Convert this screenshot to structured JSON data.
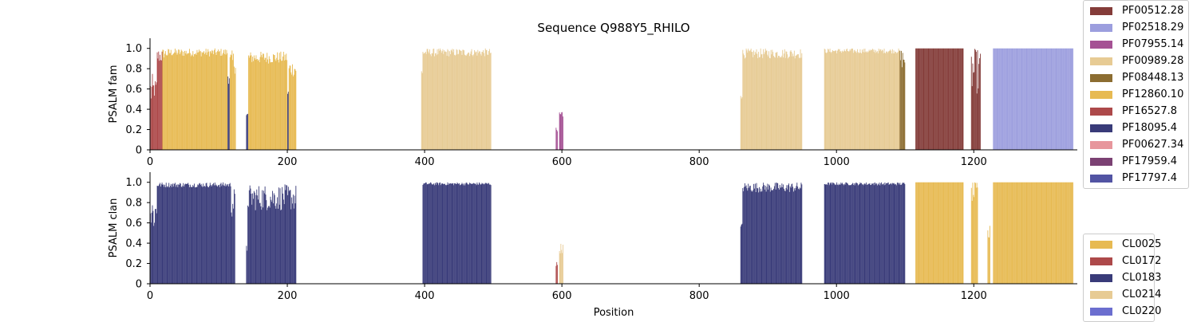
{
  "chart_data": {
    "title": "Sequence Q988Y5_RHILO",
    "xlabel": "Position",
    "xlim": [
      0,
      1345
    ],
    "xticks": [
      0,
      200,
      400,
      600,
      800,
      1000,
      1200
    ],
    "yticks": [
      0,
      0.2,
      0.4,
      0.6,
      0.8,
      1.0
    ],
    "ytick_labels": [
      "0",
      "0.2",
      "0.4",
      "0.6",
      "0.8",
      "1.0"
    ],
    "grid": false,
    "panels": [
      {
        "type": "bar",
        "ylabel": "PSALM fam",
        "ylim": [
          0,
          1.1
        ],
        "legend_position": "right",
        "legend": [
          {
            "label": "PF00512.28",
            "color": "#843c39"
          },
          {
            "label": "PF02518.29",
            "color": "#9c9ede"
          },
          {
            "label": "PF07955.14",
            "color": "#a55194"
          },
          {
            "label": "PF00989.28",
            "color": "#e7cb94"
          },
          {
            "label": "PF08448.13",
            "color": "#8c6d31"
          },
          {
            "label": "PF12860.10",
            "color": "#e7ba52"
          },
          {
            "label": "PF16527.8",
            "color": "#ad494a"
          },
          {
            "label": "PF18095.4",
            "color": "#393b79"
          },
          {
            "label": "PF00627.34",
            "color": "#e7969c"
          },
          {
            "label": "PF17959.4",
            "color": "#7b4173"
          },
          {
            "label": "PF17797.4",
            "color": "#5254a3"
          }
        ],
        "segments": [
          {
            "start": 0,
            "end": 4,
            "label": "PF16527.8",
            "lo": 0.4,
            "hi": 0.75
          },
          {
            "start": 4,
            "end": 10,
            "label": "PF16527.8",
            "lo": 0.5,
            "hi": 0.7
          },
          {
            "start": 10,
            "end": 18,
            "label": "PF16527.8",
            "lo": 0.85,
            "hi": 1.0
          },
          {
            "start": 18,
            "end": 26,
            "label": "PF12860.10",
            "lo": 0.9,
            "hi": 1.0
          },
          {
            "start": 26,
            "end": 113,
            "label": "PF12860.10",
            "lo": 0.92,
            "hi": 1.0
          },
          {
            "start": 113,
            "end": 116,
            "label": "PF18095.4",
            "lo": 0.65,
            "hi": 0.82
          },
          {
            "start": 116,
            "end": 125,
            "label": "PF12860.10",
            "lo": 0.75,
            "hi": 0.98
          },
          {
            "start": 140,
            "end": 143,
            "label": "PF18095.4",
            "lo": 0.3,
            "hi": 0.38
          },
          {
            "start": 143,
            "end": 200,
            "label": "PF12860.10",
            "lo": 0.85,
            "hi": 0.97
          },
          {
            "start": 200,
            "end": 202,
            "label": "PF18095.4",
            "lo": 0.5,
            "hi": 0.6
          },
          {
            "start": 202,
            "end": 213,
            "label": "PF12860.10",
            "lo": 0.72,
            "hi": 0.88
          },
          {
            "start": 395,
            "end": 397,
            "label": "PF00989.28",
            "lo": 0.6,
            "hi": 0.85
          },
          {
            "start": 397,
            "end": 497,
            "label": "PF00989.28",
            "lo": 0.92,
            "hi": 1.0
          },
          {
            "start": 591,
            "end": 594,
            "label": "PF07955.14",
            "lo": 0.15,
            "hi": 0.22
          },
          {
            "start": 596,
            "end": 602,
            "label": "PF07955.14",
            "lo": 0.3,
            "hi": 0.4
          },
          {
            "start": 860,
            "end": 863,
            "label": "PF00989.28",
            "lo": 0.5,
            "hi": 0.62
          },
          {
            "start": 863,
            "end": 950,
            "label": "PF00989.28",
            "lo": 0.9,
            "hi": 1.0
          },
          {
            "start": 982,
            "end": 1092,
            "label": "PF00989.28",
            "lo": 0.95,
            "hi": 1.0
          },
          {
            "start": 1092,
            "end": 1100,
            "label": "PF08448.13",
            "lo": 0.8,
            "hi": 1.0
          },
          {
            "start": 1115,
            "end": 1185,
            "label": "PF00512.28",
            "lo": 1.0,
            "hi": 1.0
          },
          {
            "start": 1196,
            "end": 1210,
            "label": "PF00512.28",
            "lo": 0.55,
            "hi": 1.0
          },
          {
            "start": 1228,
            "end": 1345,
            "label": "PF02518.29",
            "lo": 1.0,
            "hi": 1.0
          }
        ]
      },
      {
        "type": "bar",
        "ylabel": "PSALM clan",
        "ylim": [
          0,
          1.1
        ],
        "legend_position": "lower right",
        "legend": [
          {
            "label": "CL0025",
            "color": "#e7ba52"
          },
          {
            "label": "CL0172",
            "color": "#ad494a"
          },
          {
            "label": "CL0183",
            "color": "#393b79"
          },
          {
            "label": "CL0214",
            "color": "#e7cb94"
          },
          {
            "label": "CL0220",
            "color": "#6b6ecf"
          }
        ],
        "segments": [
          {
            "start": 0,
            "end": 10,
            "label": "CL0183",
            "lo": 0.5,
            "hi": 0.9
          },
          {
            "start": 10,
            "end": 118,
            "label": "CL0183",
            "lo": 0.95,
            "hi": 1.0
          },
          {
            "start": 118,
            "end": 124,
            "label": "CL0183",
            "lo": 0.65,
            "hi": 0.95
          },
          {
            "start": 140,
            "end": 142,
            "label": "CL0183",
            "lo": 0.3,
            "hi": 0.38
          },
          {
            "start": 142,
            "end": 213,
            "label": "CL0183",
            "lo": 0.72,
            "hi": 0.98
          },
          {
            "start": 397,
            "end": 497,
            "label": "CL0183",
            "lo": 0.97,
            "hi": 1.0
          },
          {
            "start": 591,
            "end": 594,
            "label": "CL0172",
            "lo": 0.15,
            "hi": 0.22
          },
          {
            "start": 596,
            "end": 602,
            "label": "CL0214",
            "lo": 0.3,
            "hi": 0.4
          },
          {
            "start": 860,
            "end": 863,
            "label": "CL0183",
            "lo": 0.5,
            "hi": 0.6
          },
          {
            "start": 863,
            "end": 950,
            "label": "CL0183",
            "lo": 0.9,
            "hi": 1.0
          },
          {
            "start": 982,
            "end": 1100,
            "label": "CL0183",
            "lo": 0.97,
            "hi": 1.0
          },
          {
            "start": 1115,
            "end": 1185,
            "label": "CL0025",
            "lo": 1.0,
            "hi": 1.0
          },
          {
            "start": 1196,
            "end": 1206,
            "label": "CL0025",
            "lo": 0.8,
            "hi": 1.0
          },
          {
            "start": 1220,
            "end": 1224,
            "label": "CL0025",
            "lo": 0.4,
            "hi": 0.58
          },
          {
            "start": 1228,
            "end": 1345,
            "label": "CL0025",
            "lo": 1.0,
            "hi": 1.0
          }
        ]
      }
    ]
  }
}
